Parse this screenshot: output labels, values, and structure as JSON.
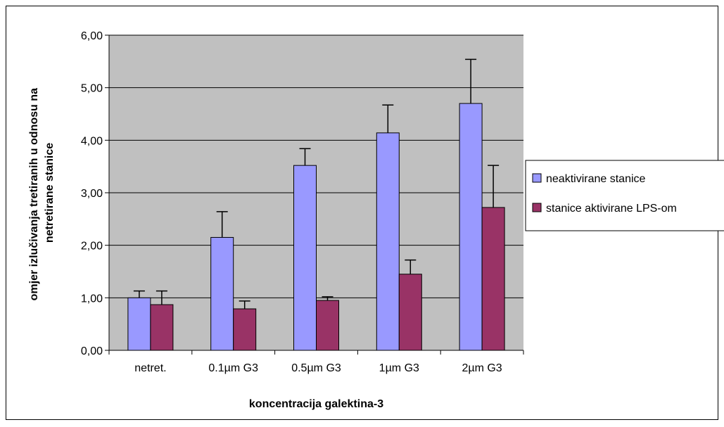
{
  "chart_data": {
    "type": "bar",
    "title": "",
    "xlabel": "koncentracija galektina-3",
    "ylabel_lines": [
      "omjer izlučivanja tretiranih u odnosu na",
      "netretirane stanice"
    ],
    "categories": [
      "netret.",
      "0.1µm G3",
      "0.5µm G3",
      "1µm G3",
      "2µm G3"
    ],
    "ylim": [
      0,
      6
    ],
    "yticks": [
      "0,00",
      "1,00",
      "2,00",
      "3,00",
      "4,00",
      "5,00",
      "6,00"
    ],
    "grid": true,
    "legend_position": "right",
    "series": [
      {
        "name": "neaktivirane stanice",
        "color": "#9999ff",
        "values": [
          1.0,
          2.15,
          3.52,
          4.14,
          4.7
        ],
        "errors": [
          0.13,
          0.49,
          0.32,
          0.53,
          0.84
        ]
      },
      {
        "name": "stanice aktivirane LPS-om",
        "color": "#993366",
        "values": [
          0.87,
          0.79,
          0.95,
          1.45,
          2.72
        ],
        "errors": [
          0.26,
          0.15,
          0.07,
          0.27,
          0.8
        ]
      }
    ]
  }
}
